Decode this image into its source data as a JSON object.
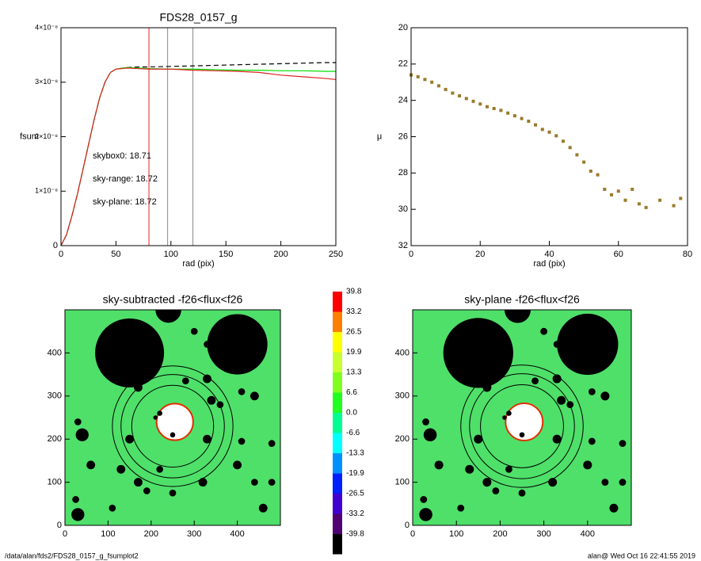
{
  "chart_data": [
    {
      "type": "line",
      "title": "FDS28_0157_g",
      "x_label": "rad (pix)",
      "y_label": "fsum",
      "xlim": [
        0,
        250
      ],
      "xticks": [
        0,
        50,
        100,
        150,
        200,
        250
      ],
      "ylim": [
        0,
        4e-08
      ],
      "yticks": [
        0,
        {
          "value": 1e-08,
          "label": "1×10⁻⁸"
        },
        {
          "value": 2e-08,
          "label": "2×10⁻⁸"
        },
        {
          "value": 3e-08,
          "label": "3×10⁻⁸"
        },
        {
          "value": 4e-08,
          "label": "4×10⁻⁸"
        }
      ],
      "x": [
        0,
        5,
        10,
        15,
        20,
        25,
        30,
        35,
        40,
        45,
        50,
        60,
        70,
        80,
        100,
        120,
        140,
        160,
        180,
        200,
        220,
        240,
        250
      ],
      "series": [
        {
          "color": "#000000",
          "dashed": true,
          "values": [
            0,
            2e-09,
            5.5e-09,
            9.5e-09,
            1.4e-08,
            1.85e-08,
            2.3e-08,
            2.7e-08,
            3e-08,
            3.18e-08,
            3.24e-08,
            3.27e-08,
            3.28e-08,
            3.28e-08,
            3.29e-08,
            3.3e-08,
            3.31e-08,
            3.32e-08,
            3.33e-08,
            3.34e-08,
            3.35e-08,
            3.36e-08,
            3.36e-08
          ]
        },
        {
          "color": "#00dd00",
          "dashed": false,
          "values": [
            0,
            2e-09,
            5.5e-09,
            9.5e-09,
            1.4e-08,
            1.85e-08,
            2.3e-08,
            2.7e-08,
            3e-08,
            3.18e-08,
            3.24e-08,
            3.27e-08,
            3.26e-08,
            3.25e-08,
            3.24e-08,
            3.24e-08,
            3.23e-08,
            3.22e-08,
            3.22e-08,
            3.21e-08,
            3.21e-08,
            3.2e-08,
            3.2e-08
          ]
        },
        {
          "color": "#dd2222",
          "dashed": false,
          "values": [
            0,
            2e-09,
            5.5e-09,
            9.5e-09,
            1.4e-08,
            1.85e-08,
            2.3e-08,
            2.7e-08,
            3e-08,
            3.18e-08,
            3.24e-08,
            3.26e-08,
            3.25e-08,
            3.24e-08,
            3.24e-08,
            3.22e-08,
            3.21e-08,
            3.2e-08,
            3.18e-08,
            3.13e-08,
            3.1e-08,
            3.07e-08,
            3.05e-08
          ]
        }
      ],
      "vlines": [
        {
          "x": 80,
          "color": "#ee2222"
        },
        {
          "x": 97,
          "color": "#888888"
        },
        {
          "x": 120,
          "color": "#888888"
        }
      ],
      "annotations": [
        {
          "text": "skybox0: 18.71",
          "color": "#000000"
        },
        {
          "text": "sky-range: 18.72",
          "color": "#dd2222"
        },
        {
          "text": "sky-plane: 18.72",
          "color": "#22cc22"
        }
      ]
    },
    {
      "type": "scatter",
      "x_label": "rad (pix)",
      "y_label": "μ",
      "xlim": [
        0,
        80
      ],
      "xticks": [
        0,
        20,
        40,
        60,
        80
      ],
      "ylim": [
        32,
        20
      ],
      "yticks": [
        20,
        22,
        24,
        26,
        28,
        30,
        32
      ],
      "color": "#9a7a2a",
      "x": [
        0,
        2,
        4,
        6,
        8,
        10,
        12,
        14,
        16,
        18,
        20,
        22,
        24,
        26,
        28,
        30,
        32,
        34,
        36,
        38,
        40,
        42,
        44,
        46,
        48,
        50,
        52,
        54,
        56,
        58,
        60,
        62,
        64,
        66,
        68,
        72,
        76,
        78
      ],
      "values": [
        22.6,
        22.7,
        22.85,
        23.0,
        23.2,
        23.4,
        23.6,
        23.75,
        23.9,
        24.05,
        24.2,
        24.35,
        24.45,
        24.55,
        24.7,
        24.85,
        25.0,
        25.15,
        25.35,
        25.6,
        25.75,
        25.95,
        26.25,
        26.6,
        27.0,
        27.4,
        27.9,
        28.1,
        28.9,
        29.2,
        29.0,
        29.5,
        28.9,
        29.7,
        29.9,
        29.5,
        29.8,
        29.4
      ]
    },
    {
      "type": "image",
      "title": "sky-subtracted -f26<flux<f26",
      "xlim": [
        0,
        500
      ],
      "xticks": [
        0,
        100,
        200,
        300,
        400
      ],
      "ylim": [
        0,
        500
      ],
      "yticks": [
        0,
        100,
        200,
        300,
        400
      ]
    },
    {
      "type": "image",
      "title": "sky-plane -f26<flux<f26",
      "xlim": [
        0,
        500
      ],
      "xticks": [
        0,
        100,
        200,
        300,
        400
      ],
      "ylim": [
        0,
        500
      ],
      "yticks": [
        0,
        100,
        200,
        300,
        400
      ]
    }
  ],
  "colorbar": {
    "levels": [
      39.8,
      33.2,
      26.5,
      19.9,
      13.3,
      6.6,
      {
        "value": 0,
        "label": "0.0"
      },
      -6.6,
      -13.3,
      -19.9,
      -26.5,
      -33.2,
      -39.8
    ],
    "colors": [
      "#ff0000",
      "#ff8000",
      "#ffff00",
      "#c8ff30",
      "#80ff20",
      "#20ff20",
      "#00ff90",
      "#00ffff",
      "#0090ff",
      "#0020ff",
      "#4000d0",
      "#500070",
      "#000000"
    ]
  },
  "footer": {
    "path": "/data/alan/fds2/FDS28_0157_g_fsumplot2",
    "stamp": "alan@  Wed Oct 16 22:41:55 2019"
  }
}
